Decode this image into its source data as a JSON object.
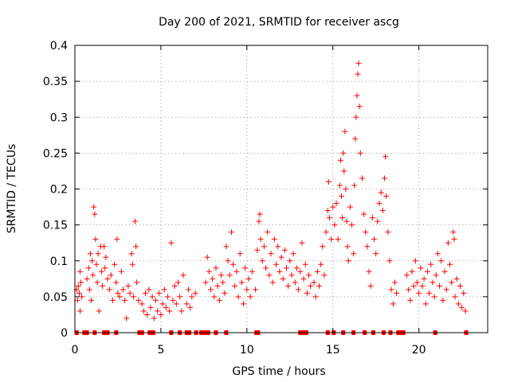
{
  "chart_data": {
    "type": "scatter",
    "title": "Day 200 of 2021, SRMTID for receiver ascg",
    "xlabel": "GPS time / hours",
    "ylabel": "SRMTID / TECUs",
    "xlim": [
      0,
      24
    ],
    "ylim": [
      0,
      0.4
    ],
    "grid": true,
    "marker": "+",
    "color": "#ff0000",
    "x_ticks": [
      0,
      5,
      10,
      15,
      20
    ],
    "y_ticks": [
      0,
      0.05,
      0.1,
      0.15,
      0.2,
      0.25,
      0.3,
      0.35,
      0.4
    ],
    "y_tick_labels": [
      "0",
      "0.05",
      "0.1",
      "0.15",
      "0.2",
      "0.25",
      "0.3",
      "0.35",
      "0.4"
    ],
    "points": [
      [
        0.1,
        0.06
      ],
      [
        0.15,
        0.045
      ],
      [
        0.2,
        0.065
      ],
      [
        0.25,
        0.055
      ],
      [
        0.3,
        0.085
      ],
      [
        0.3,
        0.03
      ],
      [
        0.35,
        0.07
      ],
      [
        0.4,
        0.05
      ],
      [
        0.7,
        0.075
      ],
      [
        0.8,
        0.09
      ],
      [
        0.85,
        0.06
      ],
      [
        0.9,
        0.11
      ],
      [
        0.95,
        0.045
      ],
      [
        1.0,
        0.1
      ],
      [
        1.05,
        0.08
      ],
      [
        1.1,
        0.175
      ],
      [
        1.15,
        0.165
      ],
      [
        1.2,
        0.13
      ],
      [
        1.25,
        0.095
      ],
      [
        1.3,
        0.07
      ],
      [
        1.35,
        0.11
      ],
      [
        1.4,
        0.03
      ],
      [
        1.5,
        0.12
      ],
      [
        1.55,
        0.085
      ],
      [
        1.6,
        0.065
      ],
      [
        1.7,
        0.12
      ],
      [
        1.75,
        0.09
      ],
      [
        1.8,
        0.105
      ],
      [
        1.9,
        0.075
      ],
      [
        2.0,
        0.06
      ],
      [
        2.1,
        0.08
      ],
      [
        2.2,
        0.045
      ],
      [
        2.3,
        0.095
      ],
      [
        2.4,
        0.07
      ],
      [
        2.45,
        0.13
      ],
      [
        2.5,
        0.055
      ],
      [
        2.6,
        0.05
      ],
      [
        2.7,
        0.085
      ],
      [
        2.8,
        0.06
      ],
      [
        2.9,
        0.045
      ],
      [
        3.0,
        0.02
      ],
      [
        3.1,
        0.065
      ],
      [
        3.2,
        0.055
      ],
      [
        3.3,
        0.11
      ],
      [
        3.35,
        0.095
      ],
      [
        3.4,
        0.05
      ],
      [
        3.5,
        0.155
      ],
      [
        3.55,
        0.12
      ],
      [
        3.6,
        0.07
      ],
      [
        3.7,
        0.045
      ],
      [
        3.9,
        0.04
      ],
      [
        4.0,
        0.03
      ],
      [
        4.1,
        0.055
      ],
      [
        4.2,
        0.025
      ],
      [
        4.3,
        0.06
      ],
      [
        4.4,
        0.035
      ],
      [
        4.5,
        0.05
      ],
      [
        4.6,
        0.02
      ],
      [
        4.7,
        0.045
      ],
      [
        4.8,
        0.03
      ],
      [
        4.9,
        0.055
      ],
      [
        5.0,
        0.025
      ],
      [
        5.1,
        0.04
      ],
      [
        5.2,
        0.06
      ],
      [
        5.3,
        0.035
      ],
      [
        5.4,
        0.05
      ],
      [
        5.5,
        0.03
      ],
      [
        5.6,
        0.125
      ],
      [
        5.7,
        0.045
      ],
      [
        5.8,
        0.065
      ],
      [
        5.9,
        0.04
      ],
      [
        6.0,
        0.07
      ],
      [
        6.1,
        0.05
      ],
      [
        6.2,
        0.03
      ],
      [
        6.3,
        0.08
      ],
      [
        6.5,
        0.04
      ],
      [
        6.6,
        0.06
      ],
      [
        6.7,
        0.035
      ],
      [
        6.8,
        0.05
      ],
      [
        7.0,
        0.055
      ],
      [
        7.6,
        0.07
      ],
      [
        7.7,
        0.105
      ],
      [
        7.8,
        0.085
      ],
      [
        7.9,
        0.06
      ],
      [
        8.0,
        0.075
      ],
      [
        8.1,
        0.05
      ],
      [
        8.2,
        0.09
      ],
      [
        8.3,
        0.065
      ],
      [
        8.4,
        0.045
      ],
      [
        8.5,
        0.08
      ],
      [
        8.6,
        0.07
      ],
      [
        8.7,
        0.055
      ],
      [
        8.8,
        0.12
      ],
      [
        8.9,
        0.1
      ],
      [
        9.0,
        0.08
      ],
      [
        9.1,
        0.14
      ],
      [
        9.2,
        0.095
      ],
      [
        9.3,
        0.065
      ],
      [
        9.4,
        0.085
      ],
      [
        9.5,
        0.05
      ],
      [
        9.6,
        0.11
      ],
      [
        9.7,
        0.07
      ],
      [
        9.8,
        0.04
      ],
      [
        9.9,
        0.09
      ],
      [
        10.0,
        0.06
      ],
      [
        10.1,
        0.075
      ],
      [
        10.2,
        0.05
      ],
      [
        10.3,
        0.085
      ],
      [
        10.5,
        0.06
      ],
      [
        10.6,
        0.115
      ],
      [
        10.7,
        0.155
      ],
      [
        10.75,
        0.165
      ],
      [
        10.8,
        0.13
      ],
      [
        10.9,
        0.1
      ],
      [
        11.0,
        0.12
      ],
      [
        11.1,
        0.09
      ],
      [
        11.2,
        0.14
      ],
      [
        11.3,
        0.08
      ],
      [
        11.4,
        0.11
      ],
      [
        11.5,
        0.07
      ],
      [
        11.6,
        0.13
      ],
      [
        11.7,
        0.095
      ],
      [
        11.8,
        0.12
      ],
      [
        11.9,
        0.085
      ],
      [
        12.0,
        0.105
      ],
      [
        12.1,
        0.075
      ],
      [
        12.2,
        0.115
      ],
      [
        12.3,
        0.09
      ],
      [
        12.4,
        0.065
      ],
      [
        12.5,
        0.1
      ],
      [
        12.6,
        0.08
      ],
      [
        12.7,
        0.11
      ],
      [
        12.8,
        0.07
      ],
      [
        12.9,
        0.09
      ],
      [
        13.0,
        0.06
      ],
      [
        13.1,
        0.085
      ],
      [
        13.2,
        0.125
      ],
      [
        13.3,
        0.075
      ],
      [
        13.4,
        0.095
      ],
      [
        13.5,
        0.055
      ],
      [
        13.6,
        0.08
      ],
      [
        13.7,
        0.065
      ],
      [
        13.9,
        0.07
      ],
      [
        14.0,
        0.05
      ],
      [
        14.1,
        0.085
      ],
      [
        14.2,
        0.065
      ],
      [
        14.3,
        0.095
      ],
      [
        14.4,
        0.12
      ],
      [
        14.5,
        0.08
      ],
      [
        14.6,
        0.14
      ],
      [
        14.7,
        0.17
      ],
      [
        14.75,
        0.21
      ],
      [
        14.8,
        0.16
      ],
      [
        14.9,
        0.13
      ],
      [
        15.0,
        0.175
      ],
      [
        15.1,
        0.15
      ],
      [
        15.2,
        0.18
      ],
      [
        15.3,
        0.13
      ],
      [
        15.4,
        0.205
      ],
      [
        15.45,
        0.24
      ],
      [
        15.5,
        0.19
      ],
      [
        15.55,
        0.16
      ],
      [
        15.6,
        0.25
      ],
      [
        15.65,
        0.225
      ],
      [
        15.7,
        0.28
      ],
      [
        15.75,
        0.2
      ],
      [
        15.8,
        0.155
      ],
      [
        15.85,
        0.12
      ],
      [
        15.9,
        0.1
      ],
      [
        16.0,
        0.175
      ],
      [
        16.1,
        0.15
      ],
      [
        16.2,
        0.11
      ],
      [
        16.25,
        0.205
      ],
      [
        16.3,
        0.27
      ],
      [
        16.35,
        0.3
      ],
      [
        16.4,
        0.33
      ],
      [
        16.45,
        0.36
      ],
      [
        16.5,
        0.375
      ],
      [
        16.55,
        0.315
      ],
      [
        16.6,
        0.25
      ],
      [
        16.7,
        0.215
      ],
      [
        16.8,
        0.165
      ],
      [
        16.9,
        0.14
      ],
      [
        17.0,
        0.12
      ],
      [
        17.1,
        0.085
      ],
      [
        17.2,
        0.065
      ],
      [
        17.3,
        0.16
      ],
      [
        17.4,
        0.13
      ],
      [
        17.5,
        0.11
      ],
      [
        17.6,
        0.155
      ],
      [
        17.7,
        0.18
      ],
      [
        17.8,
        0.195
      ],
      [
        17.9,
        0.17
      ],
      [
        18.0,
        0.215
      ],
      [
        18.05,
        0.245
      ],
      [
        18.1,
        0.19
      ],
      [
        18.2,
        0.14
      ],
      [
        18.3,
        0.1
      ],
      [
        18.4,
        0.06
      ],
      [
        18.5,
        0.04
      ],
      [
        18.6,
        0.07
      ],
      [
        18.7,
        0.055
      ],
      [
        19.3,
        0.08
      ],
      [
        19.4,
        0.06
      ],
      [
        19.5,
        0.045
      ],
      [
        19.6,
        0.085
      ],
      [
        19.7,
        0.065
      ],
      [
        19.8,
        0.1
      ],
      [
        19.9,
        0.07
      ],
      [
        20.0,
        0.055
      ],
      [
        20.1,
        0.09
      ],
      [
        20.2,
        0.065
      ],
      [
        20.3,
        0.075
      ],
      [
        20.4,
        0.04
      ],
      [
        20.5,
        0.085
      ],
      [
        20.6,
        0.055
      ],
      [
        20.7,
        0.095
      ],
      [
        20.8,
        0.07
      ],
      [
        20.9,
        0.05
      ],
      [
        21.0,
        0.08
      ],
      [
        21.1,
        0.11
      ],
      [
        21.2,
        0.065
      ],
      [
        21.3,
        0.1
      ],
      [
        21.4,
        0.045
      ],
      [
        21.5,
        0.085
      ],
      [
        21.6,
        0.06
      ],
      [
        21.7,
        0.125
      ],
      [
        21.8,
        0.095
      ],
      [
        21.9,
        0.07
      ],
      [
        22.0,
        0.14
      ],
      [
        22.05,
        0.13
      ],
      [
        22.1,
        0.05
      ],
      [
        22.2,
        0.075
      ],
      [
        22.3,
        0.04
      ],
      [
        22.4,
        0.065
      ],
      [
        22.5,
        0.035
      ],
      [
        22.6,
        0.055
      ],
      [
        22.7,
        0.03
      ]
    ],
    "zero_markers": [
      0.1,
      0.55,
      0.7,
      1.15,
      1.7,
      1.9,
      2.4,
      3.75,
      3.9,
      4.35,
      4.55,
      5.6,
      6.1,
      6.5,
      6.65,
      7.05,
      7.35,
      7.5,
      7.65,
      7.75,
      8.2,
      8.8,
      10.55,
      10.65,
      13.1,
      13.3,
      13.45,
      14.7,
      15.05,
      15.6,
      16.2,
      16.85,
      17.35,
      17.95,
      18.35,
      18.8,
      19.0,
      19.1,
      20.95,
      22.75
    ]
  }
}
